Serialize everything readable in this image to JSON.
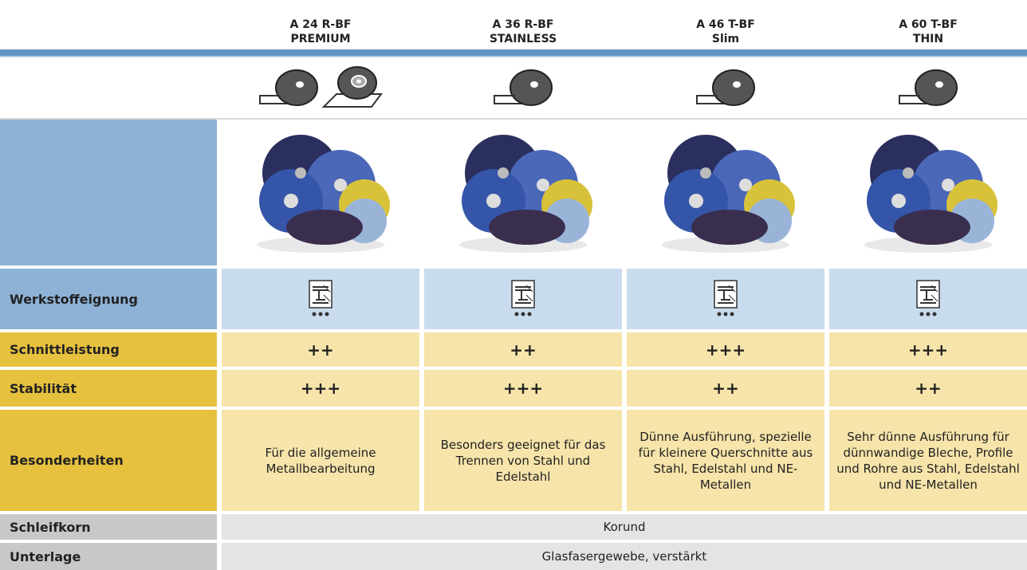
{
  "header": {
    "products": [
      {
        "code": "A 24 R-BF",
        "variant": "PREMIUM"
      },
      {
        "code": "A 36 R-BF",
        "variant": "STAINLESS"
      },
      {
        "code": "A 46 T-BF",
        "variant": "Slim"
      },
      {
        "code": "A 60 T-BF",
        "variant": "THIN"
      }
    ]
  },
  "table": {
    "rows": [
      {
        "label": "Werkstoffeignung"
      },
      {
        "label": "Schnittleistung",
        "cells": [
          "++",
          "++",
          "+++",
          "+++"
        ]
      },
      {
        "label": "Stabilität",
        "cells": [
          "+++",
          "+++",
          "++",
          "++"
        ]
      },
      {
        "label": "Besonderheiten",
        "cells": [
          "Für die allgemeine Metallbearbeitung",
          "Besonders geeignet für das Trennen von Stahl und Edelstahl",
          "Dünne Ausführung, spezielle für kleinere Querschnitte aus Stahl, Edelstahl und NE-Metallen",
          "Sehr dünne Ausführung für dünnwandige Bleche, Profile und Rohre aus Stahl, Edelstahl und NE-Metallen"
        ]
      },
      {
        "label": "Schleifkorn",
        "value": "Korund"
      },
      {
        "label": "Unterlage",
        "value": "Glasfasergewebe, verstärkt"
      }
    ]
  }
}
